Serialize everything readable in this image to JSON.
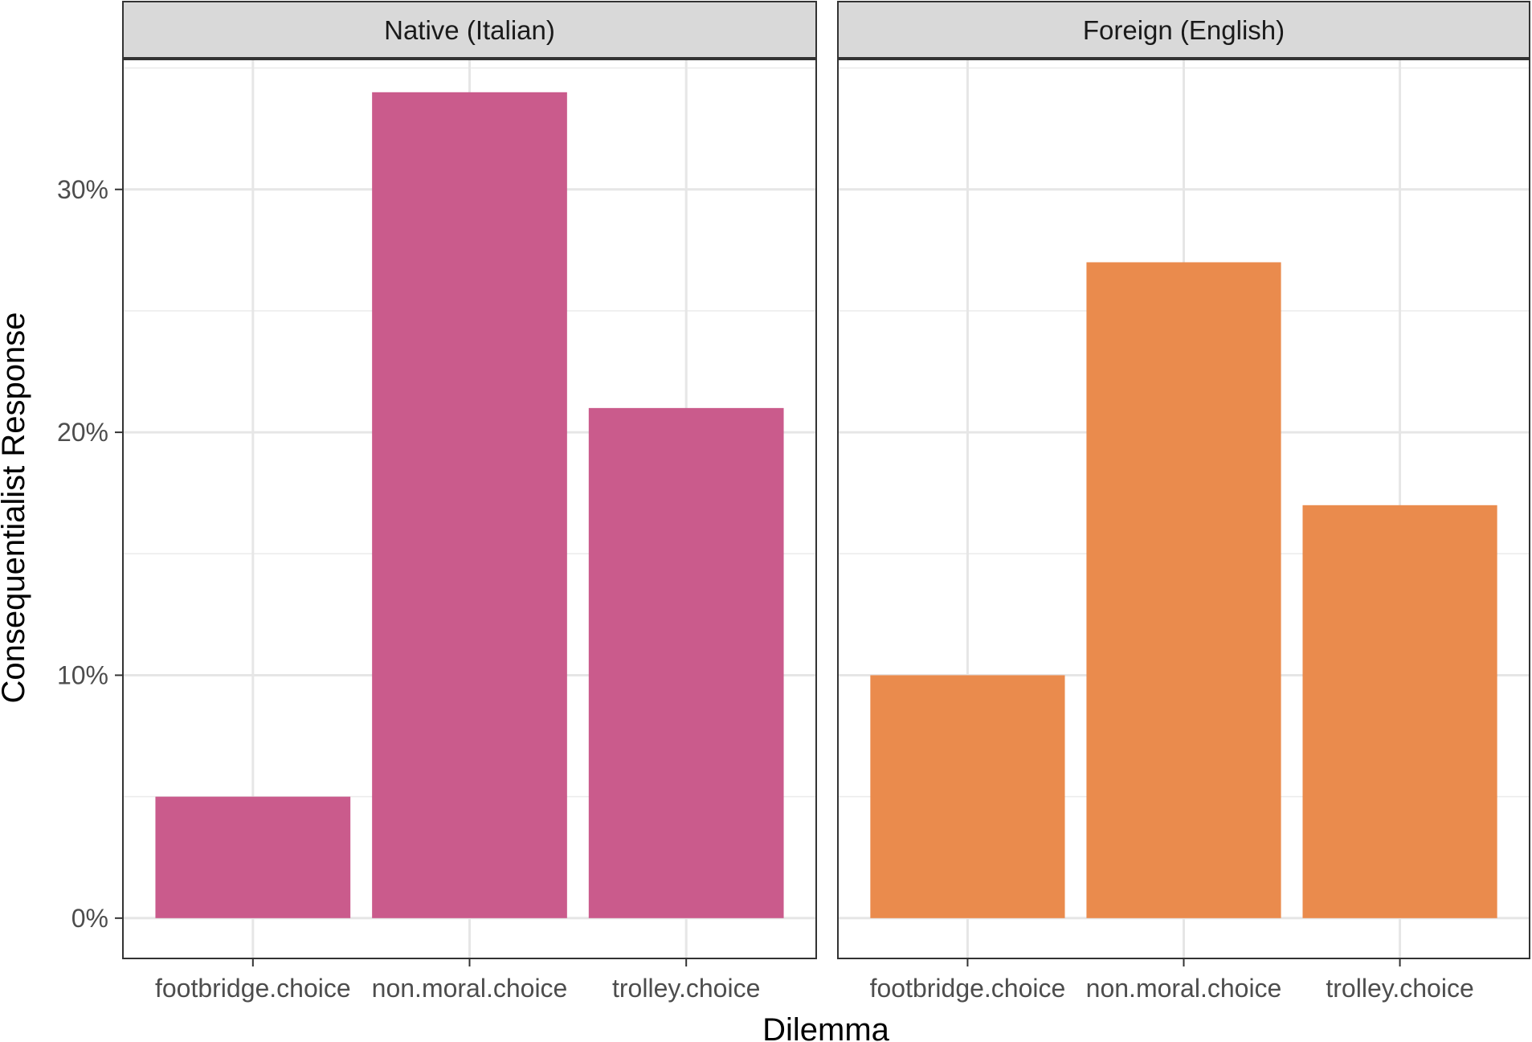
{
  "chart_data": {
    "type": "bar",
    "xlabel": "Dilemma",
    "ylabel": "Consequentialist Response",
    "ylim": [
      -0.0166,
      0.3535
    ],
    "y_ticks": [
      0,
      0.1,
      0.2,
      0.3
    ],
    "y_tick_labels": [
      "0%",
      "10%",
      "20%",
      "30%"
    ],
    "y_minor_ticks": [
      0.05,
      0.15,
      0.25,
      0.35
    ],
    "grid": true,
    "categories": [
      "footbridge.choice",
      "non.moral.choice",
      "trolley.choice"
    ],
    "facets": [
      {
        "label": "Native (Italian)",
        "color": "#CA5B8C",
        "values": [
          0.05,
          0.34,
          0.21
        ]
      },
      {
        "label": "Foreign (English)",
        "color": "#EA8B4D",
        "values": [
          0.1,
          0.27,
          0.17
        ]
      }
    ]
  }
}
